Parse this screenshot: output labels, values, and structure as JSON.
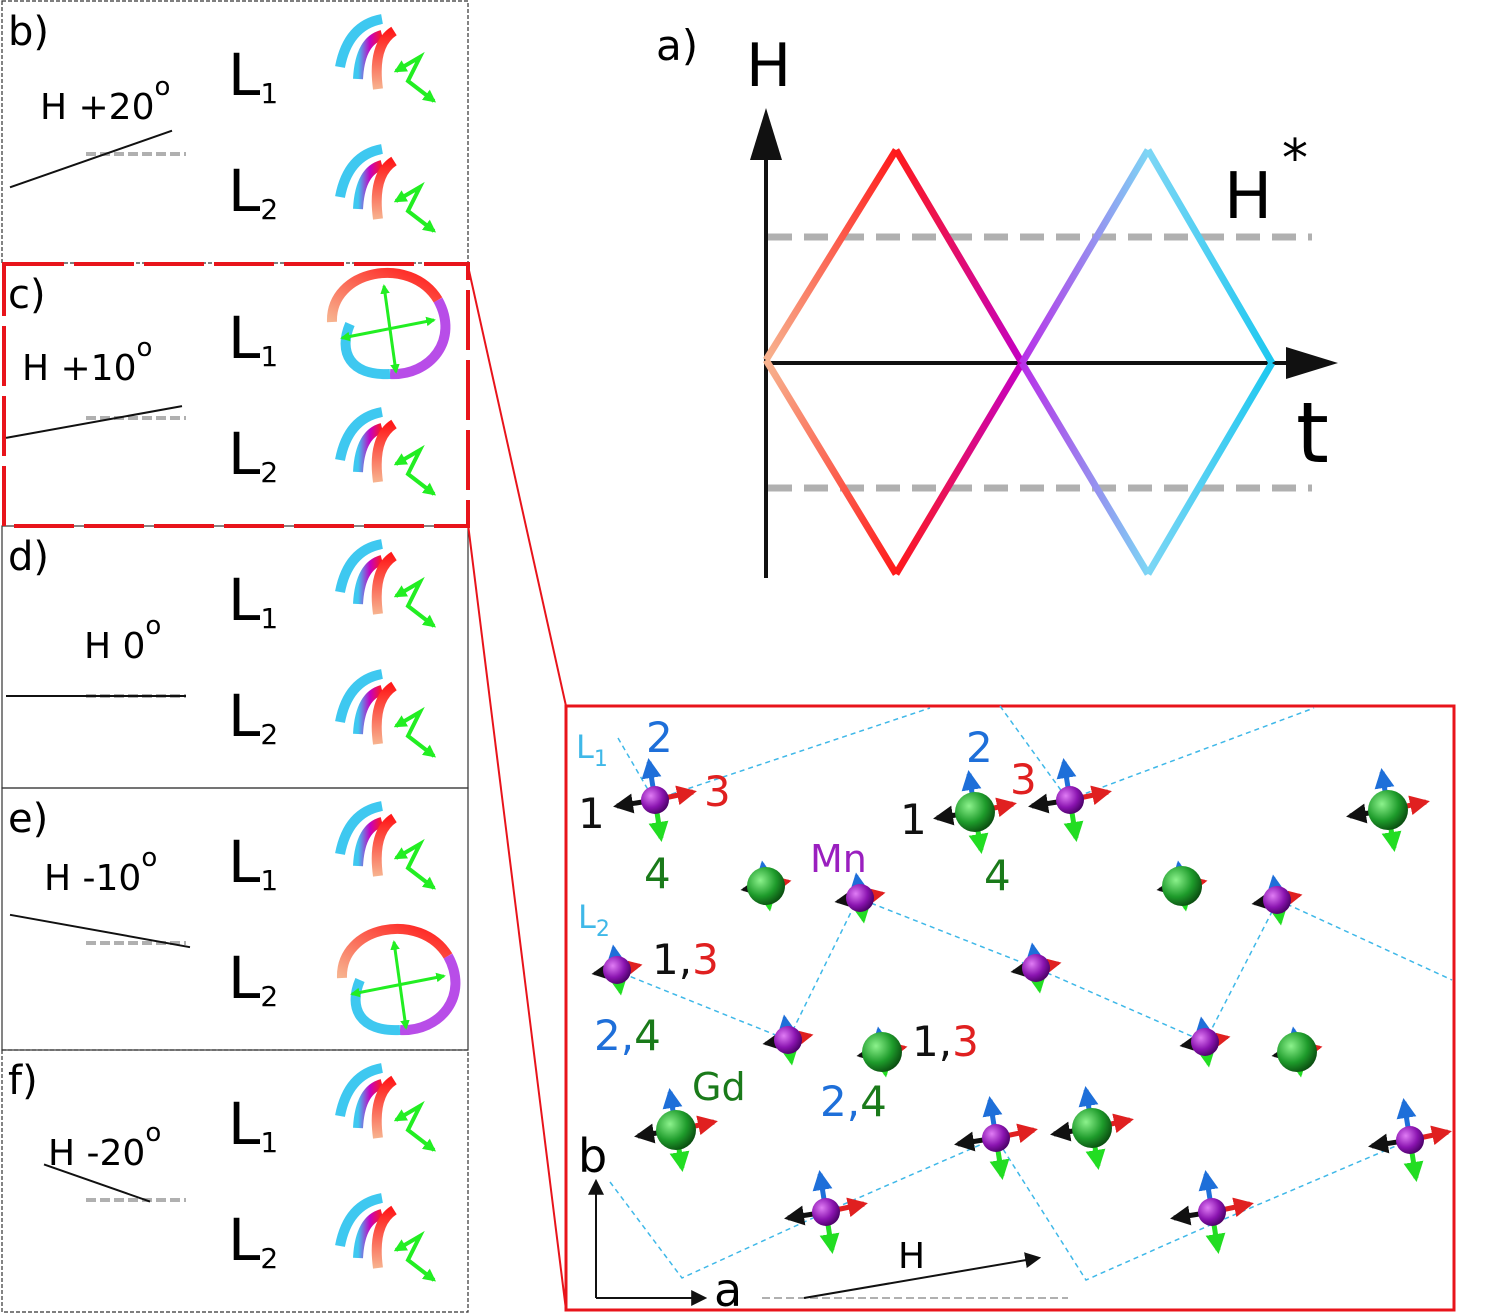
{
  "panel_a": {
    "label": "a)",
    "y_axis_label": "H",
    "x_axis_label": "t",
    "threshold_label": "H",
    "threshold_superscript": "*"
  },
  "side_panels": [
    {
      "label": "b)",
      "field": "H",
      "angle": "+20",
      "degree": "o",
      "l1": "L",
      "l1_sub": "1",
      "l2": "L",
      "l2_sub": "2"
    },
    {
      "label": "c)",
      "field": "H",
      "angle": "+10",
      "degree": "o",
      "l1": "L",
      "l1_sub": "1",
      "l2": "L",
      "l2_sub": "2"
    },
    {
      "label": "d)",
      "field": "H",
      "angle": "0",
      "degree": "o",
      "l1": "L",
      "l1_sub": "1",
      "l2": "L",
      "l2_sub": "2"
    },
    {
      "label": "e)",
      "field": "H",
      "angle": "-10",
      "degree": "o",
      "l1": "L",
      "l1_sub": "1",
      "l2": "L",
      "l2_sub": "2"
    },
    {
      "label": "f)",
      "field": "H",
      "angle": "-20",
      "degree": "o",
      "l1": "L",
      "l1_sub": "1",
      "l2": "L",
      "l2_sub": "2"
    }
  ],
  "structure": {
    "l1": "L",
    "l1_sub": "1",
    "l2": "L",
    "l2_sub": "2",
    "n1": "1",
    "n2": "2",
    "n3": "3",
    "n4": "4",
    "pair13_a": "1,",
    "pair13_b": "3",
    "pair24_a": "2,",
    "pair24_b": "4",
    "mn": "Mn",
    "gd": "Gd",
    "axis_b": "b",
    "axis_a": "a",
    "field": "H"
  },
  "colors": {
    "highlight_frame": "#e8141b",
    "spiral_red": "#ff1a1a",
    "spiral_magenta": "#c400c4",
    "spiral_blue": "#3ec8f0",
    "spiral_salmon": "#f7b38f",
    "moment_green": "#22ff22",
    "mn_atom": "#9a1fbf",
    "gd_atom": "#1e9b2b",
    "chain_dashed": "#3fb8e8",
    "threshold_gray": "#b0b0b0"
  }
}
